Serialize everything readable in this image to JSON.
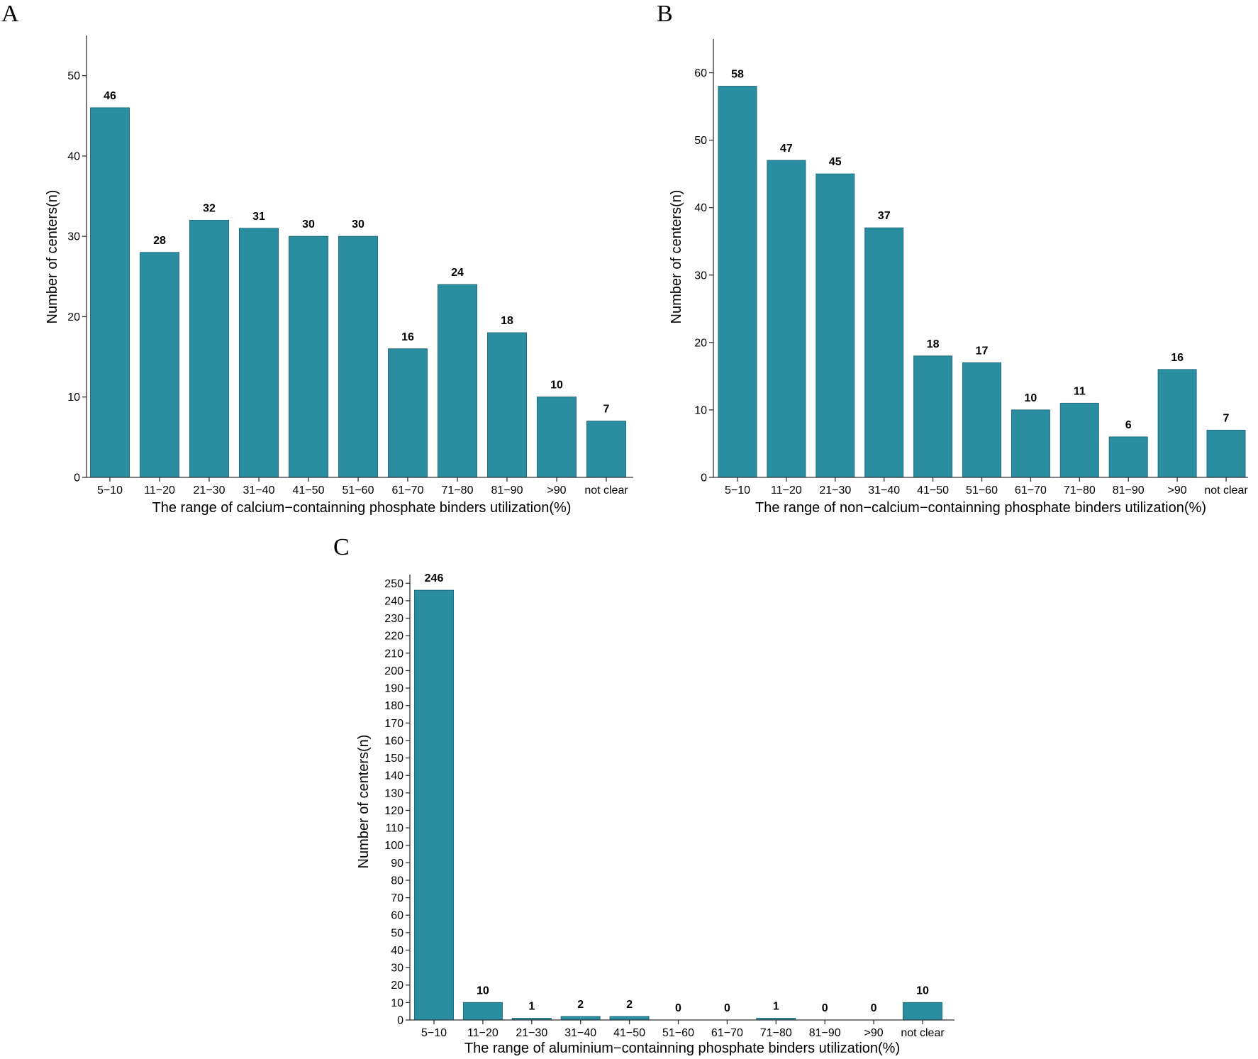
{
  "chart_data": [
    {
      "panel": "A",
      "type": "bar",
      "categories": [
        "5−10",
        "11−20",
        "21−30",
        "31−40",
        "41−50",
        "51−60",
        "61−70",
        "71−80",
        "81−90",
        ">90",
        "not clear"
      ],
      "values": [
        46,
        28,
        32,
        31,
        30,
        30,
        16,
        24,
        18,
        10,
        7
      ],
      "xlabel": "The range of calcium−containning phosphate binders utilization(%)",
      "ylabel": "Number of centers(n)",
      "ylim": [
        0,
        55
      ],
      "yticks": [
        0,
        10,
        20,
        30,
        40,
        50
      ],
      "bar_color": "#2b8da0",
      "grid": false
    },
    {
      "panel": "B",
      "type": "bar",
      "categories": [
        "5−10",
        "11−20",
        "21−30",
        "31−40",
        "41−50",
        "51−60",
        "61−70",
        "71−80",
        "81−90",
        ">90",
        "not clear"
      ],
      "values": [
        58,
        47,
        45,
        37,
        18,
        17,
        10,
        11,
        6,
        16,
        7
      ],
      "xlabel": "The range of non−calcium−containning phosphate binders utilization(%)",
      "ylabel": "Number of centers(n)",
      "ylim": [
        0,
        65
      ],
      "yticks": [
        0,
        10,
        20,
        30,
        40,
        50,
        60
      ],
      "bar_color": "#2b8da0",
      "grid": false
    },
    {
      "panel": "C",
      "type": "bar",
      "categories": [
        "5−10",
        "11−20",
        "21−30",
        "31−40",
        "41−50",
        "51−60",
        "61−70",
        "71−80",
        "81−90",
        ">90",
        "not clear"
      ],
      "values": [
        246,
        10,
        1,
        2,
        2,
        0,
        0,
        1,
        0,
        0,
        10
      ],
      "xlabel": "The range of aluminium−containning phosphate binders utilization(%)",
      "ylabel": "Number of centers(n)",
      "ylim": [
        0,
        255
      ],
      "yticks": [
        0,
        10,
        20,
        30,
        40,
        50,
        60,
        70,
        80,
        90,
        100,
        110,
        120,
        130,
        140,
        150,
        160,
        170,
        180,
        190,
        200,
        210,
        220,
        230,
        240,
        250
      ],
      "bar_color": "#2b8da0",
      "grid": false
    }
  ]
}
